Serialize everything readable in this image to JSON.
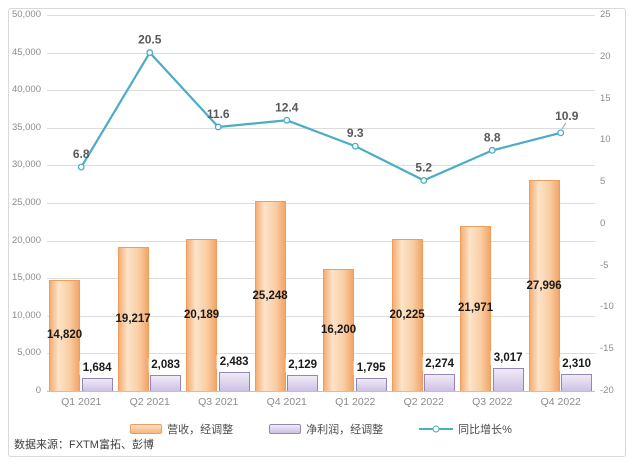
{
  "source_note": "数据来源：FXTM富拓、彭博",
  "legend": {
    "revenue": "营收，经调整",
    "net_profit": "净利润，经调整",
    "yoy_growth": "同比增长%"
  },
  "colors": {
    "revenue_border": "#ED9D5C",
    "revenue_fill_light": "#FCE3C8",
    "revenue_fill_dark": "#F3A668",
    "profit_border": "#9884BD",
    "profit_fill_light": "#EFEBF7",
    "profit_fill_dark": "#CEC0E4",
    "line": "#4BACC6",
    "grid": "#DCDCDC",
    "axis_text": "#8C8C8C",
    "line_label": "#595959",
    "frame_border": "#D9D9D9"
  },
  "chart_data": {
    "type": "bar",
    "subtype": "combo-bar-line",
    "title": "",
    "categories": [
      "Q1 2021",
      "Q2 2021",
      "Q3 2021",
      "Q4 2021",
      "Q1 2022",
      "Q2 2022",
      "Q3 2022",
      "Q4 2022"
    ],
    "series": [
      {
        "name": "营收，经调整",
        "type": "bar",
        "axis": "left",
        "values": [
          14820,
          19217,
          20189,
          25248,
          16200,
          20225,
          21971,
          27996
        ],
        "labels": [
          "14,820",
          "19,217",
          "20,189",
          "25,248",
          "16,200",
          "20,225",
          "21,971",
          "27,996"
        ]
      },
      {
        "name": "净利润，经调整",
        "type": "bar",
        "axis": "left",
        "values": [
          1684,
          2083,
          2483,
          2129,
          1795,
          2274,
          3017,
          2310
        ],
        "labels": [
          "1,684",
          "2,083",
          "2,483",
          "2,129",
          "1,795",
          "2,274",
          "3,017",
          "2,310"
        ]
      },
      {
        "name": "同比增长%",
        "type": "line",
        "axis": "right",
        "values": [
          6.8,
          20.5,
          11.6,
          12.4,
          9.3,
          5.2,
          8.8,
          10.9
        ],
        "labels": [
          "6.8",
          "20.5",
          "11.6",
          "12.4",
          "9.3",
          "5.2",
          "8.8",
          "10.9"
        ]
      }
    ],
    "left_axis": {
      "min": 0,
      "max": 50000,
      "step": 5000,
      "ticks": [
        "50,000",
        "45,000",
        "40,000",
        "35,000",
        "30,000",
        "25,000",
        "20,000",
        "15,000",
        "10,000",
        "5,000",
        "0"
      ]
    },
    "right_axis": {
      "min": -20,
      "max": 25,
      "step": 5,
      "ticks": [
        "25",
        "20",
        "15",
        "10",
        "5",
        "0",
        "-5",
        "-10",
        "-15",
        "-20"
      ]
    },
    "grid": true,
    "legend_position": "bottom",
    "layout": {
      "line_label_default": {
        "dx": 0,
        "dy": -9
      },
      "line_label_overrides": {
        "7": {
          "dx": 6,
          "dy": -13,
          "leader": true
        }
      }
    }
  }
}
